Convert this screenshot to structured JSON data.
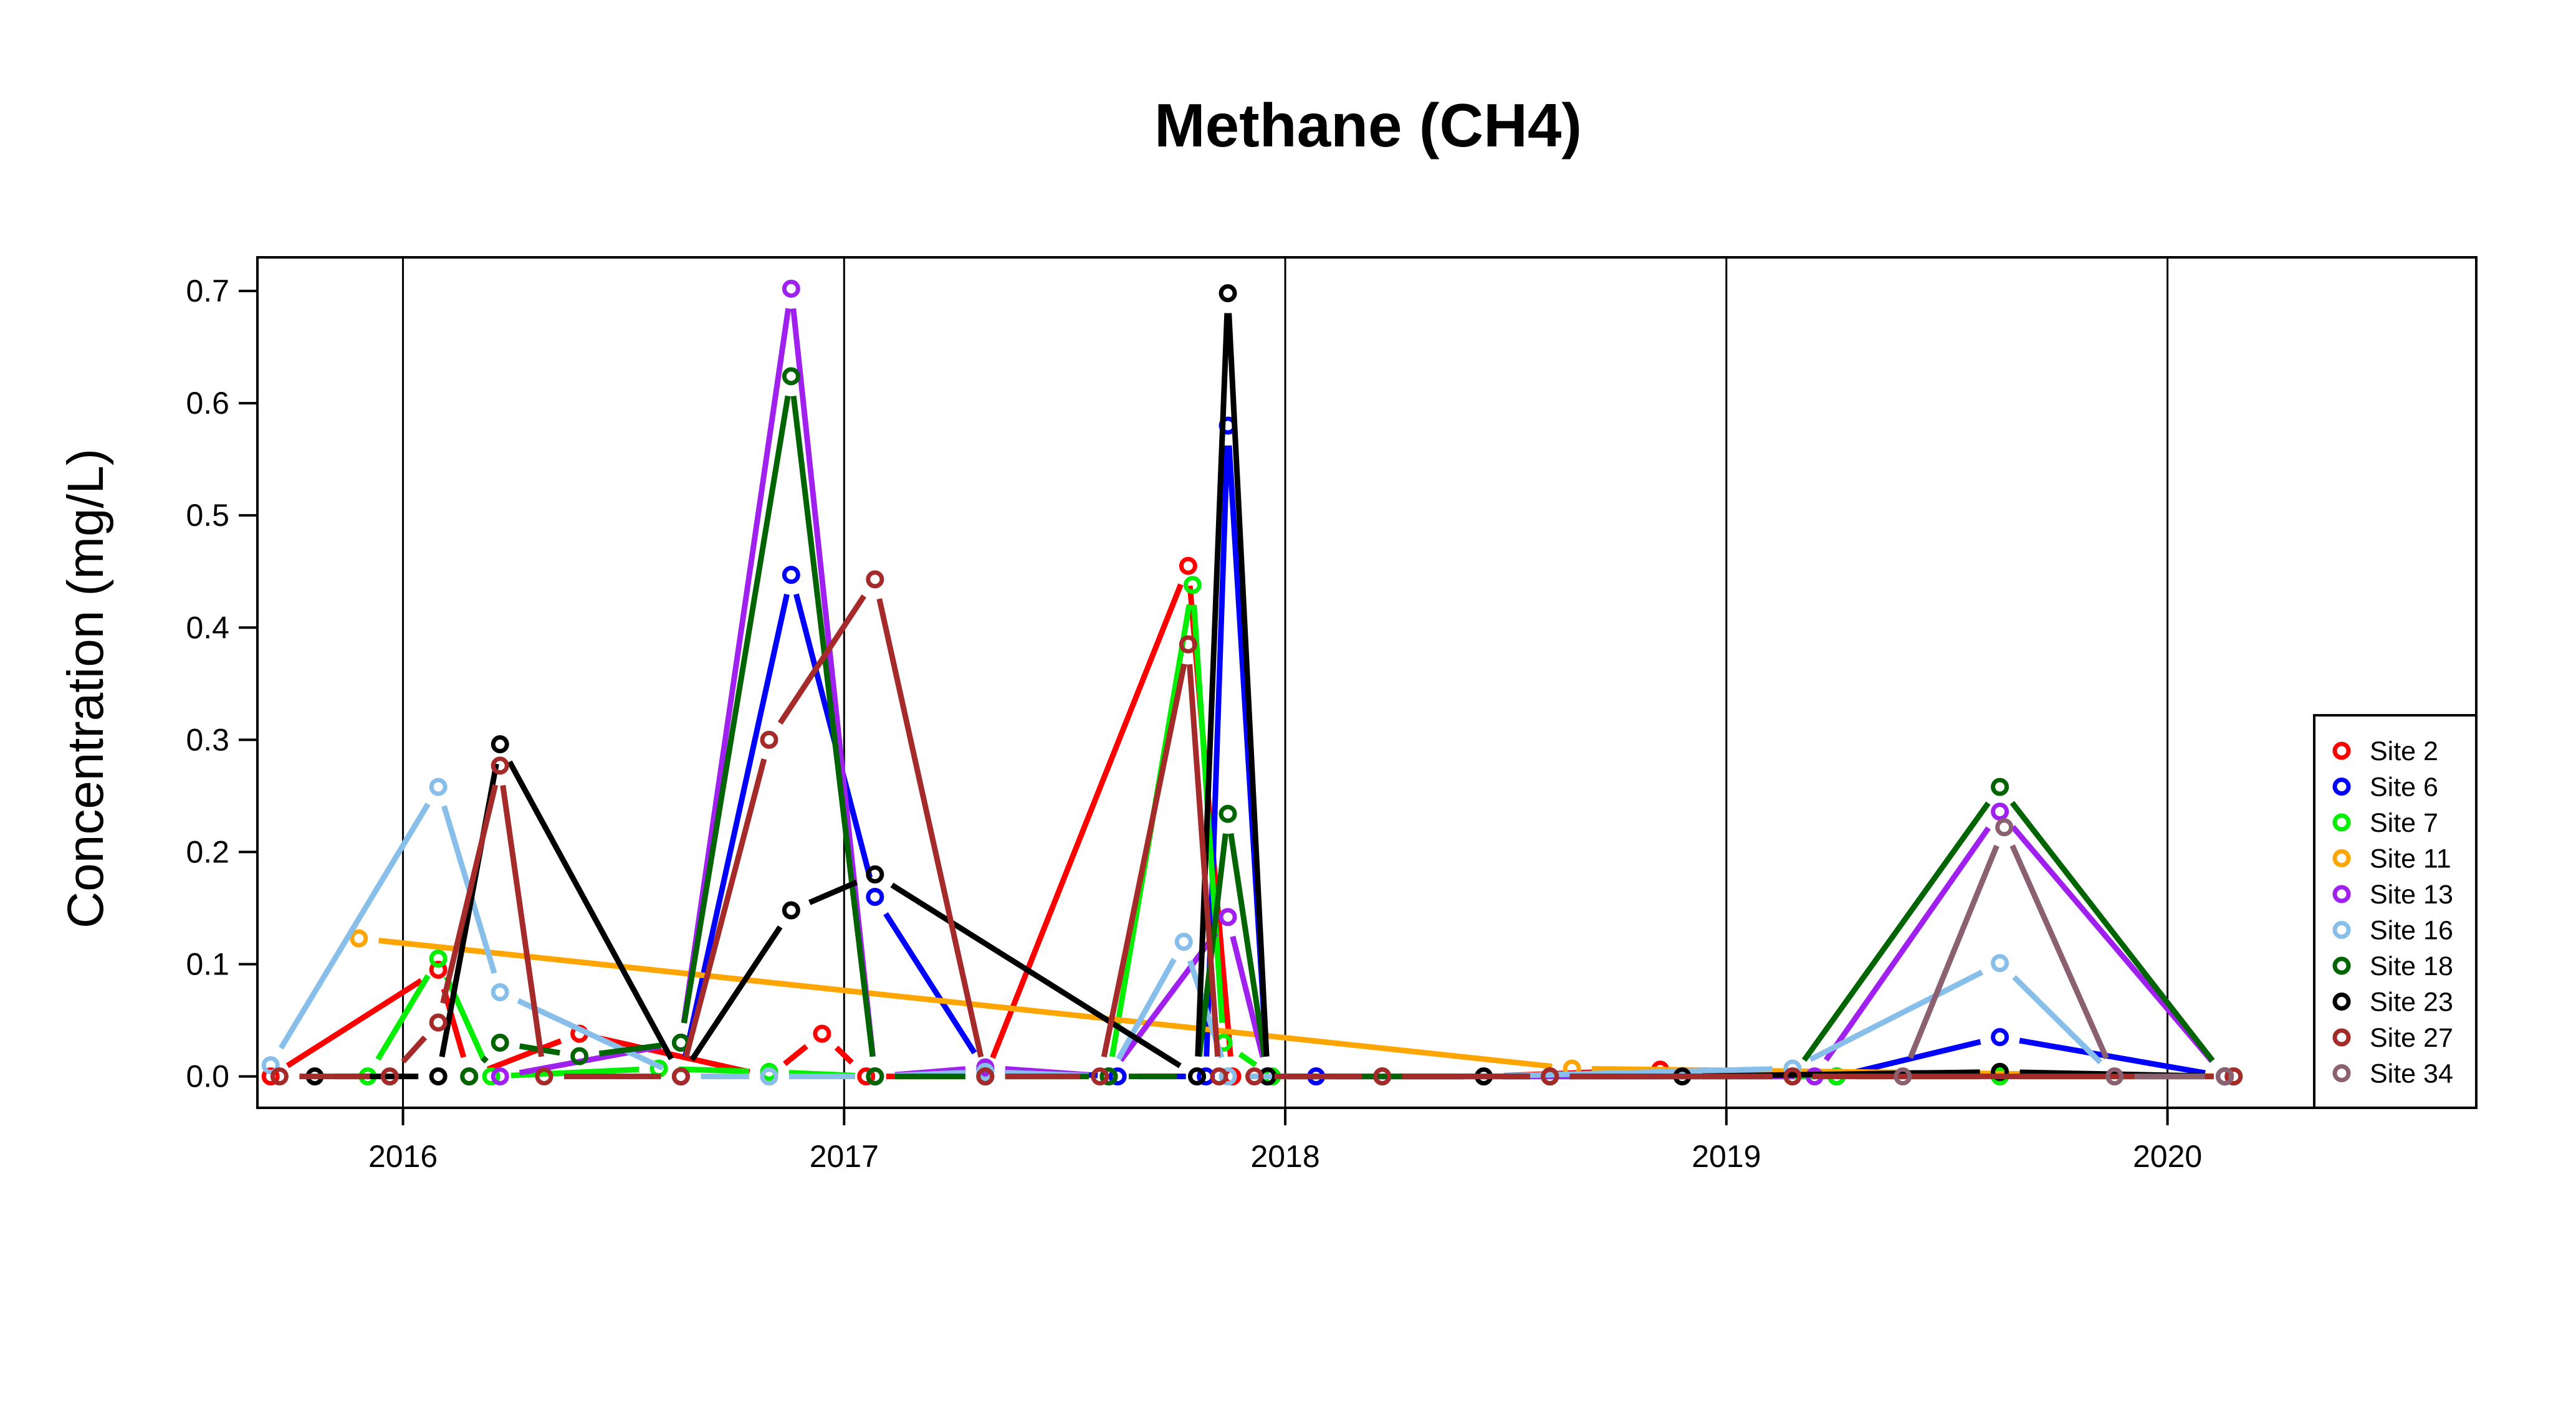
{
  "chart_data": {
    "type": "line",
    "title": "Methane (CH4)",
    "xlabel": "",
    "ylabel": "Concentration (mg/L)",
    "xlim": [
      2015.67,
      2020.7
    ],
    "ylim": [
      -0.028,
      0.73
    ],
    "x_ticks": [
      2016,
      2017,
      2018,
      2019,
      2020
    ],
    "x_tick_labels": [
      "2016",
      "2017",
      "2018",
      "2019",
      "2020"
    ],
    "y_ticks": [
      0.0,
      0.1,
      0.2,
      0.3,
      0.4,
      0.5,
      0.6,
      0.7
    ],
    "y_tick_labels": [
      "0.0",
      "0.1",
      "0.2",
      "0.3",
      "0.4",
      "0.5",
      "0.6",
      "0.7"
    ],
    "grid": "vertical lines at each year",
    "legend_position": "right",
    "series": [
      {
        "name": "Site 2",
        "color": "#ff0000",
        "x": [
          2015.7,
          2016.08,
          2016.15,
          2016.4,
          2016.83,
          2016.95,
          2017.05,
          2017.32,
          2017.78,
          2017.88,
          2017.97,
          2018.07,
          2018.45,
          2018.85,
          2019.25,
          2019.62,
          2020.15
        ],
        "y": [
          0.0,
          0.095,
          0.0,
          0.038,
          0.0,
          0.038,
          0.0,
          0.0,
          0.455,
          0.0,
          0.0,
          0.0,
          0.0,
          0.006,
          0.0,
          0.0,
          0.0
        ]
      },
      {
        "name": "Site 6",
        "color": "#0000ff",
        "x": [
          2016.63,
          2016.88,
          2017.07,
          2017.32,
          2017.62,
          2017.82,
          2017.87,
          2017.96,
          2018.07,
          2018.45,
          2019.25,
          2019.62,
          2020.13
        ],
        "y": [
          0.0,
          0.447,
          0.16,
          0.006,
          0.0,
          0.0,
          0.58,
          0.0,
          0.0,
          0.0,
          0.0,
          0.035,
          0.0
        ]
      },
      {
        "name": "Site 7",
        "color": "#00ee00",
        "x": [
          2015.92,
          2016.08,
          2016.2,
          2016.58,
          2016.83,
          2017.07,
          2017.32,
          2017.6,
          2017.79,
          2017.86,
          2017.97,
          2018.45,
          2019.25,
          2019.62,
          2020.15
        ],
        "y": [
          0.0,
          0.105,
          0.0,
          0.007,
          0.004,
          0.0,
          0.0,
          0.0,
          0.438,
          0.03,
          0.0,
          0.0,
          0.0,
          0.0,
          0.0
        ]
      },
      {
        "name": "Site 11",
        "color": "#ffa500",
        "x": [
          2015.9,
          2018.65,
          2020.15
        ],
        "y": [
          0.123,
          0.007,
          0.0
        ]
      },
      {
        "name": "Site 13",
        "color": "#a020f0",
        "x": [
          2016.22,
          2016.63,
          2016.88,
          2017.07,
          2017.32,
          2017.6,
          2017.87,
          2017.96,
          2019.2,
          2019.62,
          2020.13
        ],
        "y": [
          0.0,
          0.03,
          0.702,
          0.0,
          0.008,
          0.0,
          0.142,
          0.0,
          0.0,
          0.236,
          0.0
        ]
      },
      {
        "name": "Site 16",
        "color": "#87bfea",
        "x": [
          2015.7,
          2016.08,
          2016.22,
          2016.63,
          2016.83,
          2017.07,
          2017.32,
          2017.6,
          2017.77,
          2017.87,
          2018.45,
          2019.15,
          2019.62,
          2019.88,
          2020.13
        ],
        "y": [
          0.01,
          0.258,
          0.075,
          0.0,
          0.0,
          0.0,
          0.004,
          0.0,
          0.12,
          0.0,
          0.0,
          0.007,
          0.101,
          0.0,
          0.0
        ]
      },
      {
        "name": "Site 18",
        "color": "#006400",
        "x": [
          2016.15,
          2016.22,
          2016.4,
          2016.63,
          2016.88,
          2017.07,
          2017.32,
          2017.6,
          2017.8,
          2017.87,
          2017.96,
          2018.6,
          2019.15,
          2019.62,
          2020.13
        ],
        "y": [
          0.0,
          0.03,
          0.018,
          0.03,
          0.624,
          0.0,
          0.0,
          0.0,
          0.0,
          0.234,
          0.0,
          0.0,
          0.0,
          0.258,
          0.0
        ]
      },
      {
        "name": "Site 23",
        "color": "#000000",
        "x": [
          2015.8,
          2016.08,
          2016.22,
          2016.63,
          2016.88,
          2017.07,
          2017.8,
          2017.87,
          2017.96,
          2018.22,
          2018.45,
          2018.6,
          2018.9,
          2019.62,
          2020.13
        ],
        "y": [
          0.0,
          0.0,
          0.296,
          0.0,
          0.148,
          0.18,
          0.0,
          0.698,
          0.0,
          0.0,
          0.0,
          0.0,
          0.0,
          0.004,
          0.0
        ]
      },
      {
        "name": "Site 27",
        "color": "#a52a2a",
        "x": [
          2015.72,
          2015.97,
          2016.08,
          2016.22,
          2016.32,
          2016.63,
          2016.83,
          2017.07,
          2017.32,
          2017.58,
          2017.78,
          2017.85,
          2017.93,
          2018.22,
          2018.6,
          2019.15,
          2020.15
        ],
        "y": [
          0.0,
          0.0,
          0.048,
          0.277,
          0.0,
          0.0,
          0.3,
          0.443,
          0.0,
          0.0,
          0.385,
          0.0,
          0.0,
          0.0,
          0.0,
          0.0,
          0.0
        ]
      },
      {
        "name": "Site 34",
        "color": "#8b6070",
        "x": [
          2019.4,
          2019.63,
          2019.88,
          2020.13
        ],
        "y": [
          0.0,
          0.222,
          0.0,
          0.0
        ]
      }
    ]
  }
}
